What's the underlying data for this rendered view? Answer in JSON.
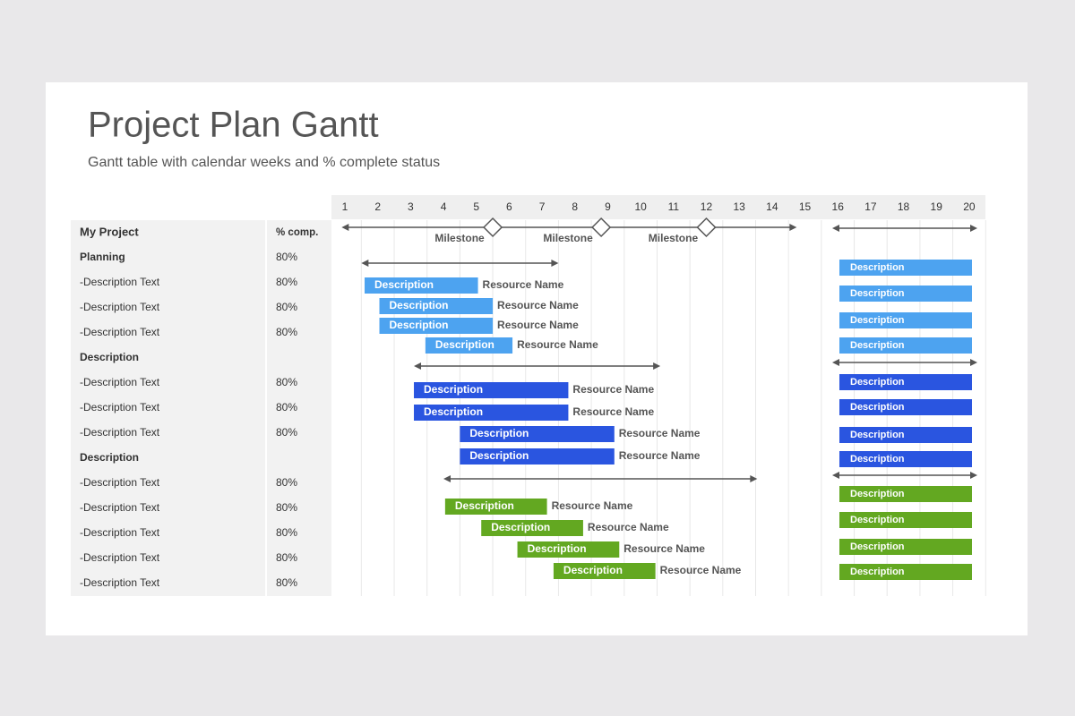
{
  "header": {
    "title": "Project Plan Gantt",
    "subtitle": "Gantt table with calendar weeks and % complete status"
  },
  "weeks": [
    1,
    2,
    3,
    4,
    5,
    6,
    7,
    8,
    9,
    10,
    11,
    12,
    13,
    14,
    15,
    16,
    17,
    18,
    19,
    20
  ],
  "table": {
    "header": [
      "My Project",
      "% comp."
    ],
    "rows": [
      [
        "Planning",
        "80%"
      ],
      [
        "-Description Text",
        "80%"
      ],
      [
        "-Description Text",
        "80%"
      ],
      [
        "-Description Text",
        "80%"
      ],
      [
        "Description"
      ],
      [
        "-Description Text",
        "80%"
      ],
      [
        "-Description Text",
        "80%"
      ],
      [
        "-Description Text",
        "80%"
      ],
      [
        "Description"
      ],
      [
        "-Description Text",
        "80%"
      ],
      [
        "-Description Text",
        "80%"
      ],
      [
        "-Description Text",
        "80%"
      ],
      [
        "-Description Text",
        "80%"
      ],
      [
        "-Description Text",
        "80%"
      ]
    ]
  },
  "milestones": {
    "span": [
      0.9,
      14.75
    ],
    "items": [
      {
        "label": "Milestone",
        "week": 5.5
      },
      {
        "label": "Milestone",
        "week": 8.8
      },
      {
        "label": "Milestone",
        "week": 12
      }
    ]
  },
  "groups": [
    {
      "color": "#4da3f0",
      "span": [
        1.5,
        7.5
      ],
      "tasks": [
        {
          "label": "Description",
          "resource": "Resource Name",
          "start": 1.6,
          "end": 5.05
        },
        {
          "label": "Description",
          "resource": "Resource Name",
          "start": 2.05,
          "end": 5.5
        },
        {
          "label": "Description",
          "resource": "Resource Name",
          "start": 2.05,
          "end": 5.5
        },
        {
          "label": "Description",
          "resource": "Resource Name",
          "start": 3.45,
          "end": 6.1
        }
      ],
      "summary": [
        "Description",
        "Description",
        "Description",
        "Description"
      ]
    },
    {
      "color": "#2a55e0",
      "span": [
        3.1,
        10.6
      ],
      "tasks": [
        {
          "label": "Description",
          "resource": "Resource Name",
          "start": 3.1,
          "end": 7.8
        },
        {
          "label": "Description",
          "resource": "Resource Name",
          "start": 3.1,
          "end": 7.8
        },
        {
          "label": "Description",
          "resource": "Resource Name",
          "start": 4.5,
          "end": 9.2
        },
        {
          "label": "Description",
          "resource": "Resource Name",
          "start": 4.5,
          "end": 9.2
        }
      ],
      "summary": [
        "Description",
        "Description",
        "Description",
        "Description"
      ]
    },
    {
      "color": "#63a821",
      "span": [
        4,
        13.55
      ],
      "tasks": [
        {
          "label": "Description",
          "resource": "Resource Name",
          "start": 4.05,
          "end": 7.15
        },
        {
          "label": "Description",
          "resource": "Resource Name",
          "start": 5.15,
          "end": 8.25
        },
        {
          "label": "Description",
          "resource": "Resource Name",
          "start": 6.25,
          "end": 9.35
        },
        {
          "label": "Description",
          "resource": "Resource Name",
          "start": 7.35,
          "end": 10.45
        }
      ],
      "summary": [
        "Description",
        "Description",
        "Description",
        "Description"
      ]
    }
  ]
}
